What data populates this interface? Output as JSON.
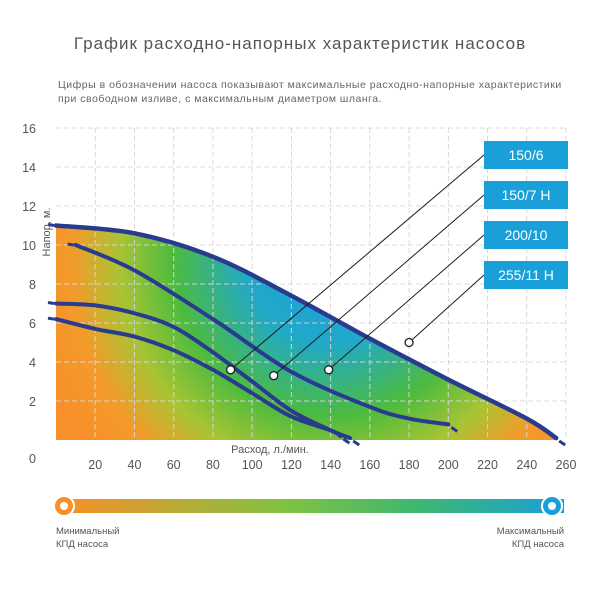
{
  "title": "График расходно-напорных характеристик насосов",
  "subtitle": [
    "Цифры в обозначении насоса показывают максимальные расходно-напорные характеристики",
    "при свободном изливе, с максимальным диаметром шланга."
  ],
  "legend": {
    "min_label": [
      "Минимальный",
      "КПД насоса"
    ],
    "max_label": [
      "Максимальный",
      "КПД насоса"
    ],
    "colors": {
      "min": "#f7902a",
      "mid": "#4fbd3e",
      "max": "#1aa0d8"
    }
  },
  "chart_data": {
    "type": "line",
    "xlabel": "Расход, л./мин.",
    "ylabel": "Напор, м.",
    "xlim": [
      0,
      260
    ],
    "ylim": [
      0,
      16
    ],
    "x_ticks": [
      20,
      40,
      60,
      80,
      100,
      120,
      140,
      160,
      180,
      200,
      220,
      240,
      260
    ],
    "y_ticks": [
      0,
      2,
      4,
      6,
      8,
      10,
      12,
      14,
      16
    ],
    "grid": true,
    "series": [
      {
        "name": "150/6",
        "x": [
          0,
          20,
          40,
          60,
          80,
          100,
          120,
          140,
          145
        ],
        "y": [
          6.2,
          5.7,
          5.3,
          4.6,
          3.6,
          2.4,
          1.2,
          0.5,
          0.2
        ]
      },
      {
        "name": "150/7 Н",
        "x": [
          0,
          20,
          40,
          60,
          80,
          100,
          120,
          140,
          150
        ],
        "y": [
          7.0,
          6.9,
          6.5,
          5.8,
          4.5,
          3.0,
          1.5,
          0.5,
          0.1
        ]
      },
      {
        "name": "200/10",
        "x": [
          10,
          40,
          80,
          120,
          160,
          180,
          200
        ],
        "y": [
          10.0,
          8.7,
          6.2,
          3.5,
          1.7,
          1.1,
          0.8
        ]
      },
      {
        "name": "255/11 Н",
        "x": [
          0,
          40,
          80,
          120,
          160,
          200,
          240,
          255
        ],
        "y": [
          11.0,
          10.6,
          9.4,
          7.4,
          5.2,
          3.1,
          1.1,
          0.1
        ]
      }
    ],
    "labels_color": "#1aa0d8",
    "line_color": "#283b8f"
  }
}
